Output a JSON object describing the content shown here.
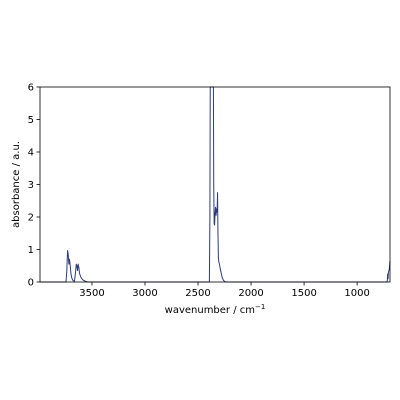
{
  "chart_data": {
    "type": "line",
    "xlabel": "wavenumber / cm",
    "xlabel_superscript": "−1",
    "ylabel": "absorbance / a.u.",
    "xlim": [
      3990,
      690
    ],
    "ylim": [
      0,
      6
    ],
    "x_reversed": true,
    "grid": false,
    "x_ticks": [
      3500,
      3000,
      2500,
      2000,
      1500,
      1000
    ],
    "y_ticks": [
      0,
      1,
      2,
      3,
      4,
      5,
      6
    ],
    "series": [
      {
        "color": "#2f3a7a",
        "points": [
          [
            3990,
            0.0
          ],
          [
            3780,
            0.0
          ],
          [
            3745,
            0.0
          ],
          [
            3738,
            0.3
          ],
          [
            3730,
            0.97
          ],
          [
            3724,
            0.85
          ],
          [
            3718,
            0.55
          ],
          [
            3712,
            0.7
          ],
          [
            3705,
            0.5
          ],
          [
            3698,
            0.25
          ],
          [
            3690,
            0.12
          ],
          [
            3680,
            0.05
          ],
          [
            3665,
            0.02
          ],
          [
            3655,
            0.3
          ],
          [
            3648,
            0.55
          ],
          [
            3642,
            0.5
          ],
          [
            3636,
            0.35
          ],
          [
            3630,
            0.55
          ],
          [
            3624,
            0.45
          ],
          [
            3616,
            0.25
          ],
          [
            3605,
            0.15
          ],
          [
            3595,
            0.1
          ],
          [
            3580,
            0.05
          ],
          [
            3560,
            0.02
          ],
          [
            3540,
            0.0
          ],
          [
            2400,
            0.0
          ],
          [
            2393,
            0.02
          ],
          [
            2388,
            2.0
          ],
          [
            2385,
            6.0
          ],
          [
            2355,
            6.0
          ],
          [
            2352,
            3.0
          ],
          [
            2348,
            1.8
          ],
          [
            2344,
            1.75
          ],
          [
            2340,
            2.1
          ],
          [
            2335,
            2.3
          ],
          [
            2330,
            2.05
          ],
          [
            2325,
            2.25
          ],
          [
            2320,
            2.15
          ],
          [
            2316,
            2.75
          ],
          [
            2312,
            1.5
          ],
          [
            2308,
            0.75
          ],
          [
            2303,
            0.6
          ],
          [
            2298,
            0.55
          ],
          [
            2290,
            0.4
          ],
          [
            2280,
            0.25
          ],
          [
            2270,
            0.12
          ],
          [
            2260,
            0.05
          ],
          [
            2250,
            0.02
          ],
          [
            2240,
            0.0
          ],
          [
            720,
            0.0
          ],
          [
            715,
            0.05
          ],
          [
            712,
            0.25
          ],
          [
            708,
            0.1
          ],
          [
            705,
            0.3
          ],
          [
            700,
            0.35
          ],
          [
            695,
            0.45
          ],
          [
            690,
            0.65
          ]
        ]
      }
    ]
  }
}
